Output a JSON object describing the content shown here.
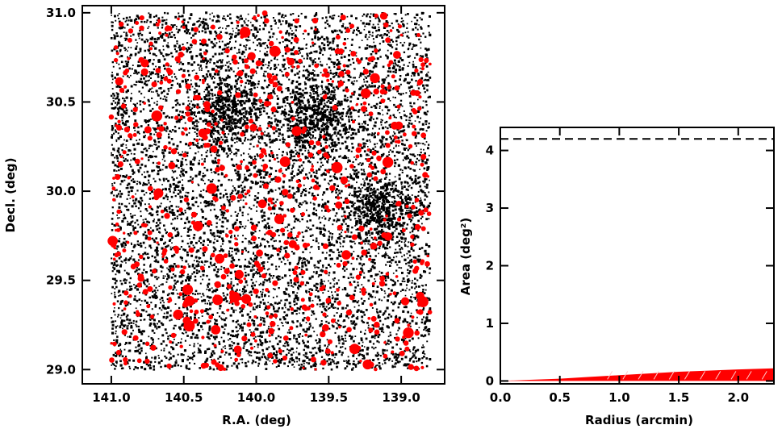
{
  "chart_data": [
    {
      "type": "scatter",
      "xlabel": "R.A. (deg)",
      "ylabel": "Decl. (deg)",
      "xlim": [
        141.2,
        138.7
      ],
      "ylim": [
        28.92,
        31.04
      ],
      "x_ticks": [
        {
          "value": 141.0,
          "label": "141.0"
        },
        {
          "value": 140.5,
          "label": "140.5"
        },
        {
          "value": 140.0,
          "label": "140.0"
        },
        {
          "value": 139.5,
          "label": "139.5"
        },
        {
          "value": 139.0,
          "label": "139.0"
        }
      ],
      "y_ticks": [
        {
          "value": 29.0,
          "label": "29.0"
        },
        {
          "value": 29.5,
          "label": "29.5"
        },
        {
          "value": 30.0,
          "label": "30.0"
        },
        {
          "value": 30.5,
          "label": "30.5"
        },
        {
          "value": 31.0,
          "label": "31.0"
        }
      ],
      "grid": false,
      "series": [
        {
          "color": "#000000",
          "approx_count": 9000,
          "ra_range": [
            141.0,
            138.8
          ],
          "dec_range": [
            29.0,
            31.0
          ],
          "dense_regions": [
            {
              "ra": 140.2,
              "dec": 30.45
            },
            {
              "ra": 139.15,
              "dec": 29.9
            },
            {
              "ra": 139.6,
              "dec": 30.4
            }
          ]
        },
        {
          "color": "#ff0000",
          "approx_count": 700,
          "ra_range": [
            141.0,
            138.8
          ],
          "dec_range": [
            29.0,
            31.0
          ]
        }
      ]
    },
    {
      "type": "area",
      "xlabel": "Radius (arcmin)",
      "ylabel": "Area (deg²)",
      "xlim": [
        0.0,
        2.3
      ],
      "ylim": [
        -0.05,
        4.4
      ],
      "x_ticks": [
        {
          "value": 0.0,
          "label": "0.0"
        },
        {
          "value": 0.5,
          "label": "0.5"
        },
        {
          "value": 1.0,
          "label": "1.0"
        },
        {
          "value": 1.5,
          "label": "1.5"
        },
        {
          "value": 2.0,
          "label": "2.0"
        }
      ],
      "y_ticks": [
        {
          "value": 0,
          "label": "0"
        },
        {
          "value": 1,
          "label": "1"
        },
        {
          "value": 2,
          "label": "2"
        },
        {
          "value": 3,
          "label": "3"
        },
        {
          "value": 4,
          "label": "4"
        }
      ],
      "reference_line": {
        "value": 4.2,
        "style": "dashed",
        "color": "#000000"
      },
      "series": [
        {
          "color": "#ff0000",
          "x": [
            0.0,
            0.25,
            0.5,
            0.75,
            1.0,
            1.25,
            1.5,
            1.75,
            2.0,
            2.3
          ],
          "y": [
            0.0,
            0.02,
            0.04,
            0.07,
            0.1,
            0.13,
            0.16,
            0.18,
            0.2,
            0.22
          ]
        }
      ],
      "grid": false
    }
  ]
}
